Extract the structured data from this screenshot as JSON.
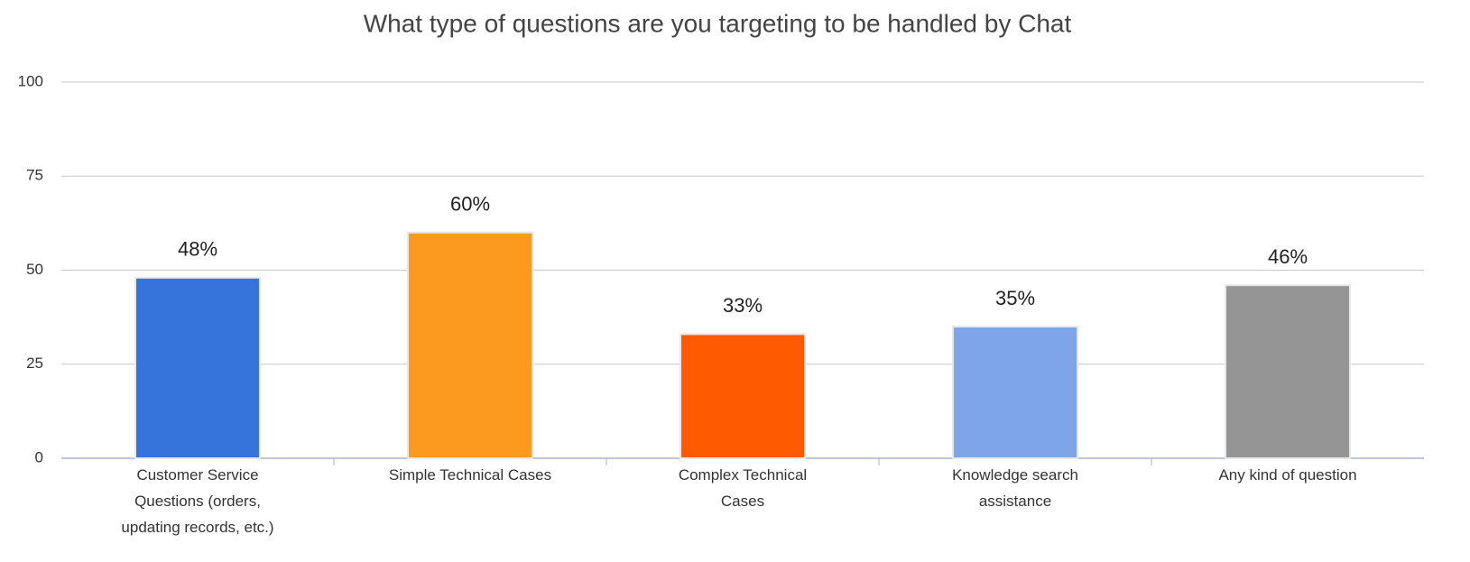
{
  "chart_data": {
    "type": "bar",
    "title": "What type of questions are you targeting to be handled by Chat",
    "categories": [
      "Customer Service\nQuestions (orders,\nupdating records, etc.)",
      "Simple Technical Cases",
      "Complex Technical\nCases",
      "Knowledge search\nassistance",
      "Any kind of question"
    ],
    "values": [
      48,
      60,
      33,
      35,
      46
    ],
    "value_labels": [
      "48%",
      "60%",
      "33%",
      "35%",
      "46%"
    ],
    "colors": [
      "#3673db",
      "#fb9a1e",
      "#fe5a02",
      "#7ea5e8",
      "#959595"
    ],
    "ylim": [
      0,
      100
    ],
    "yticks": [
      0,
      25,
      50,
      75,
      100
    ],
    "grid": true
  }
}
